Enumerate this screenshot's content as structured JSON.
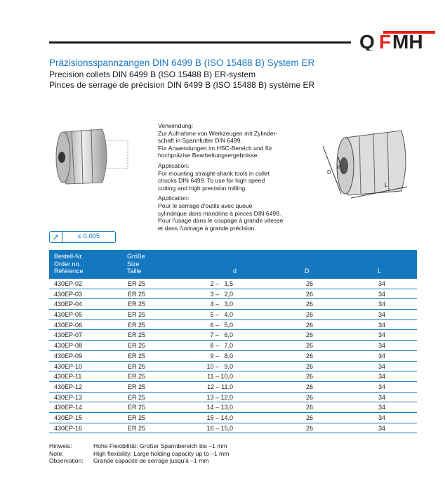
{
  "brand": {
    "logo_text": "QFMH",
    "accent": "#1478c0",
    "logo_red": "#e8231e"
  },
  "title": {
    "de": "Präzisionsspannzangen DIN 6499 B (ISO 15488 B)   System ER",
    "en": "Precision collets DIN 6499 B (ISO 15488 B)  ER-system",
    "fr": "Pinces de serrage de précision DIN 6499 B (ISO 15488 B)  système ER"
  },
  "description": [
    {
      "heading": "Verwendung:",
      "lines": [
        "Zur Aufnahme von Werkzeugen mit Zylinder-",
        "schaft in Spannfutter DIN 6499.",
        "Für Anwendungen im HSC-Bereich und für",
        "hochpräzise Bearbeitungsergebnisse."
      ]
    },
    {
      "heading": "Application:",
      "lines": [
        "For mounting straight-shank tools in collet",
        "chucks DIN 6499. To use for high speed",
        "cutting and high precision milling."
      ]
    },
    {
      "heading": "Application:",
      "lines": [
        "Pour le serrage d'outils avec queue",
        "cylindrique dans mandrins à pinces DIN 6499.",
        "Pour l'usage dans le coupage à grande vitesse",
        "et dans l'usinage à grande précision."
      ]
    }
  ],
  "tolerance": {
    "icon": "runout-arrow-icon",
    "value": "≤  0,005"
  },
  "diagram_labels": {
    "D": "D",
    "d": "d",
    "L": "L"
  },
  "table": {
    "headers": {
      "ref": [
        "Bestell-Nr.",
        "Order no.",
        "Référence"
      ],
      "size": [
        "Größe",
        "Size",
        "Taille"
      ],
      "d": "d",
      "D": "D",
      "L": "L"
    },
    "rows": [
      [
        "430EP-02",
        "ER 25",
        "2 –   1,5",
        "26",
        "34"
      ],
      [
        "430EP-03",
        "ER 25",
        "3 –   2,0",
        "26",
        "34"
      ],
      [
        "430EP-04",
        "ER 25",
        "4 –   3,0",
        "26",
        "34"
      ],
      [
        "430EP-05",
        "ER 25",
        "5 –   4,0",
        "26",
        "34"
      ],
      [
        "430EP-06",
        "ER 25",
        "6 –   5,0",
        "26",
        "34"
      ],
      [
        "430EP-07",
        "ER 25",
        "7 –   6,0",
        "26",
        "34"
      ],
      [
        "430EP-08",
        "ER 25",
        "8 –   7,0",
        "26",
        "34"
      ],
      [
        "430EP-09",
        "ER 25",
        "9 –   8,0",
        "26",
        "34"
      ],
      [
        "430EP-10",
        "ER 25",
        "10 –   9,0",
        "26",
        "34"
      ],
      [
        "430EP-11",
        "ER 25",
        "11 – 10,0",
        "26",
        "34"
      ],
      [
        "430EP-12",
        "ER 25",
        "12 – 11,0",
        "26",
        "34"
      ],
      [
        "430EP-13",
        "ER 25",
        "13 – 12,0",
        "26",
        "34"
      ],
      [
        "430EP-14",
        "ER 25",
        "14 – 13,0",
        "26",
        "34"
      ],
      [
        "430EP-15",
        "ER 25",
        "15 – 14,0",
        "26",
        "34"
      ],
      [
        "430EP-16",
        "ER 25",
        "16 – 15,0",
        "26",
        "34"
      ]
    ]
  },
  "notes": [
    {
      "k": "Hinweis:",
      "v": "Hohe Flexibilität: Großer Spannbereich bis –1 mm"
    },
    {
      "k": "Note:",
      "v": "High flexibility: Large holding capacity up to –1 mm"
    },
    {
      "k": "Observation:",
      "v": "Grande capacité de serrage jusqu'à –1 mm"
    }
  ]
}
